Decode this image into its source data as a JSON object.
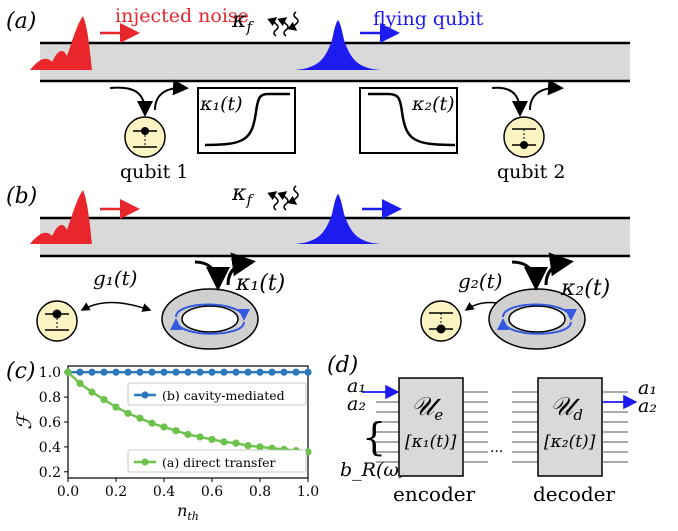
{
  "panel_a": {
    "label": "(a)",
    "noise_label": "injected noise",
    "decay_label_main": "κ",
    "decay_label_sub": "f",
    "flying_label": "flying qubit",
    "kappa1_label": "κ₁(t)",
    "kappa2_label": "κ₂(t)",
    "qubit1_label": "qubit 1",
    "qubit2_label": "qubit 2"
  },
  "panel_b": {
    "label": "(b)",
    "decay_label_main": "κ",
    "decay_label_sub": "f",
    "g1_label": "g₁(t)",
    "k1_label": "κ₁(t)",
    "g2_label": "g₂(t)",
    "k2_label": "κ₂(t)"
  },
  "panel_c": {
    "label": "(c)"
  },
  "panel_d": {
    "label": "(d)",
    "a1_in": "a₁",
    "a2_in": "a₂",
    "bR_label": "b_R(ω)",
    "encoder_symbol": "𝒰",
    "encoder_sub": "e",
    "encoder_param": "[κ₁(t)]",
    "decoder_symbol": "𝒰",
    "decoder_sub": "d",
    "decoder_param": "[κ₂(t)]",
    "ellipsis": "···",
    "encoder_label": "encoder",
    "decoder_label": "decoder",
    "a1_out": "a₁",
    "a2_out": "a₂"
  },
  "colors": {
    "noise": "#e8262b",
    "flying": "#1c1cf0",
    "waveguide_fill": "#d9d9d9",
    "qubit_fill": "#fbf4c2",
    "cavity_fill": "#d0d0d0",
    "cavity_arrow": "#3558e0",
    "series_cavity": "#2f78b8",
    "series_direct": "#6cc24a",
    "box_fill": "#d9d9d9"
  },
  "chart_data": {
    "type": "line",
    "xlabel": "n_th",
    "ylabel": "ℱ",
    "xlim": [
      0.0,
      1.0
    ],
    "ylim": [
      0.15,
      1.05
    ],
    "xticks": [
      "0.0",
      "0.2",
      "0.4",
      "0.6",
      "0.8",
      "1.0"
    ],
    "yticks": [
      "0.2",
      "0.4",
      "0.6",
      "0.8",
      "1.0"
    ],
    "legend_placement": "inside",
    "series": [
      {
        "name": "(b) cavity-mediated",
        "x": [
          0.0,
          0.05,
          0.1,
          0.15,
          0.2,
          0.25,
          0.3,
          0.35,
          0.4,
          0.45,
          0.5,
          0.55,
          0.6,
          0.65,
          0.7,
          0.75,
          0.8,
          0.85,
          0.9,
          0.95,
          1.0
        ],
        "values": [
          1.0,
          1.0,
          1.0,
          1.0,
          1.0,
          1.0,
          1.0,
          1.0,
          1.0,
          1.0,
          1.0,
          1.0,
          1.0,
          1.0,
          1.0,
          1.0,
          1.0,
          1.0,
          1.0,
          1.0,
          1.0
        ]
      },
      {
        "name": "(a) direct transfer",
        "x": [
          0.0,
          0.05,
          0.1,
          0.15,
          0.2,
          0.25,
          0.3,
          0.35,
          0.4,
          0.45,
          0.5,
          0.55,
          0.6,
          0.65,
          0.7,
          0.75,
          0.8,
          0.85,
          0.9,
          0.95,
          1.0
        ],
        "values": [
          1.0,
          0.91,
          0.84,
          0.78,
          0.72,
          0.67,
          0.63,
          0.59,
          0.56,
          0.53,
          0.5,
          0.48,
          0.46,
          0.44,
          0.43,
          0.41,
          0.4,
          0.39,
          0.38,
          0.37,
          0.36
        ]
      }
    ]
  }
}
